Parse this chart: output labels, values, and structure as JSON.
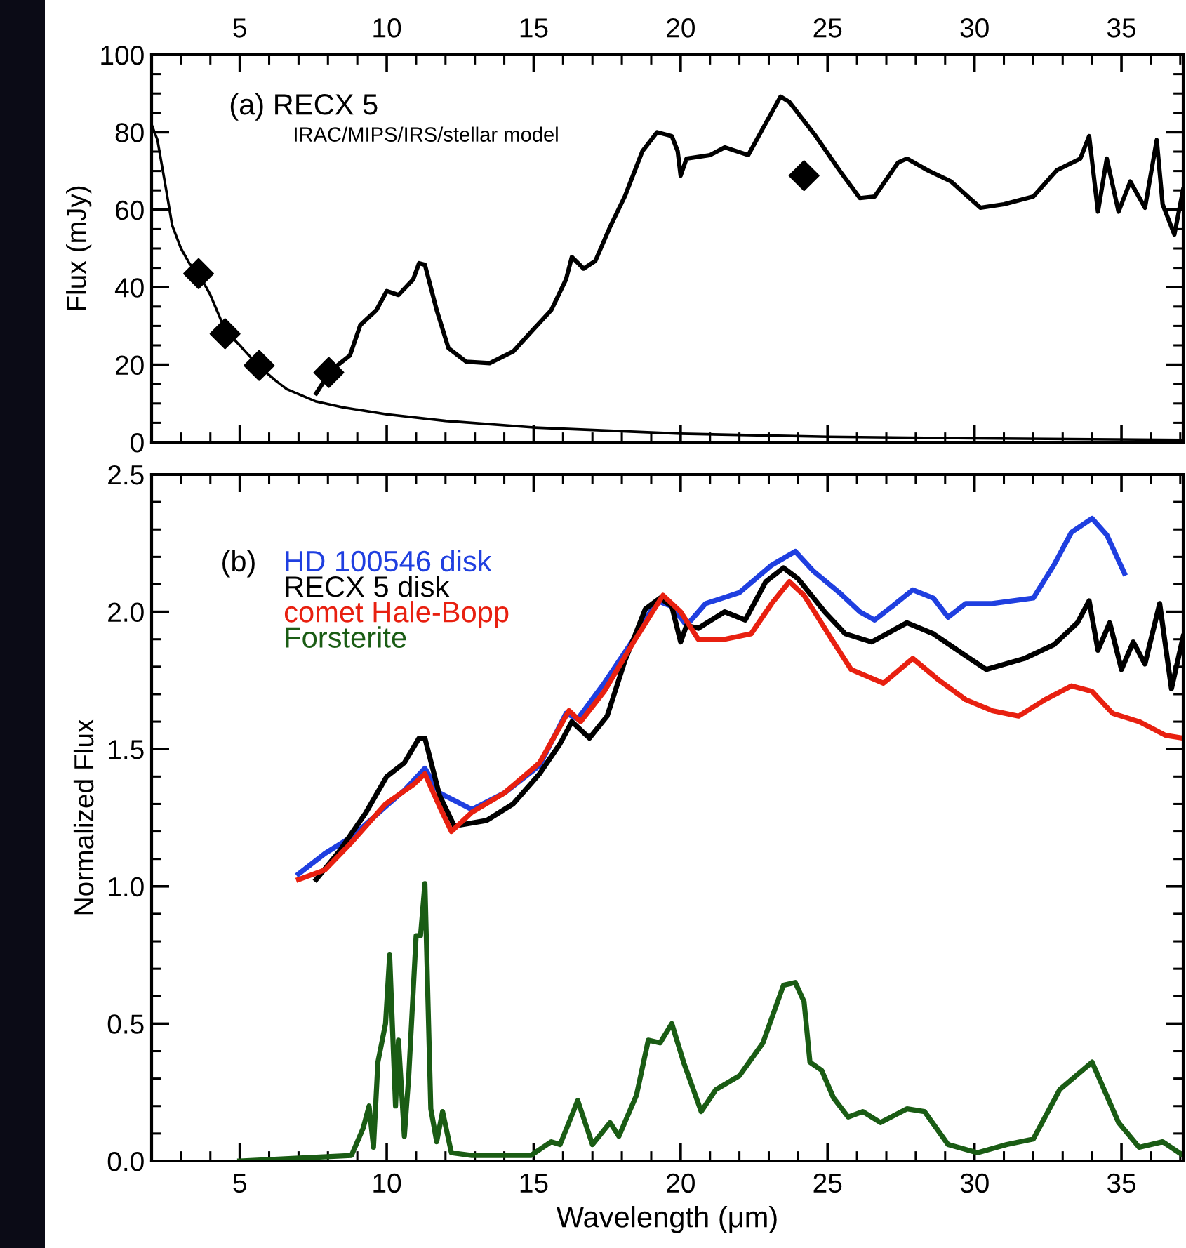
{
  "chart_data": [
    {
      "type": "line",
      "ylabel": "Flux (mJy)",
      "annotations": [
        "(a) RECX 5",
        "IRAC/MIPS/IRS/stellar model"
      ],
      "xlim": [
        2,
        37.1
      ],
      "xticks": [
        5,
        10,
        15,
        20,
        25,
        30,
        35
      ],
      "ylim": [
        0,
        100
      ],
      "yticks": [
        0,
        20,
        40,
        60,
        80,
        100
      ],
      "grid": false,
      "series": [
        {
          "color": "#000000",
          "marker": "none",
          "line_style": "solid",
          "x": [
            7.6,
            8.1,
            8.75,
            9.1,
            9.65,
            10.0,
            10.4,
            10.9,
            11.1,
            11.3,
            11.7,
            12.1,
            12.7,
            13.5,
            14.3,
            15.0,
            15.6,
            16.1,
            16.3,
            16.7,
            17.1,
            17.6,
            18.1,
            18.7,
            19.2,
            19.7,
            19.9,
            20.0,
            20.2,
            21.0,
            21.5,
            22.3,
            22.8,
            23.4,
            23.7,
            24.6,
            25.4,
            26.1,
            26.6,
            27.4,
            27.7,
            28.4,
            29.2,
            30.2,
            31.0,
            32.0,
            32.8,
            33.6,
            33.9,
            34.2,
            34.5,
            34.9,
            35.3,
            35.8,
            36.2,
            36.4,
            36.8,
            37.1
          ],
          "values": [
            12.6,
            18.5,
            22.4,
            30.2,
            34.1,
            39,
            38,
            42,
            46.2,
            45.8,
            34.1,
            24.3,
            20.8,
            20.4,
            23.4,
            29.2,
            34.1,
            42,
            47.8,
            44.8,
            46.8,
            55.6,
            63.4,
            75.1,
            80,
            79,
            75.1,
            68.8,
            73.2,
            74.1,
            76.1,
            74.1,
            81,
            89.2,
            87.8,
            79,
            70.2,
            63,
            63.4,
            72.2,
            73.2,
            70.2,
            67.3,
            60.5,
            61.4,
            63.4,
            70.2,
            73.2,
            79,
            59.5,
            73.2,
            59.5,
            67.3,
            60.5,
            78,
            61.4,
            53.6,
            65.3
          ]
        },
        {
          "color": "#000000",
          "marker": "none",
          "line_style": "solid",
          "x": [
            2.0,
            2.2,
            2.5,
            2.7,
            3.0,
            3.3,
            3.6,
            4.0,
            4.5,
            5.0,
            5.6,
            6.2,
            6.6,
            7.6,
            8.5,
            10,
            12,
            15,
            20,
            25,
            30,
            37.1
          ],
          "values": [
            82,
            78,
            65,
            56,
            50,
            46,
            43.5,
            38,
            29,
            25,
            20,
            16,
            13.7,
            10.5,
            9,
            7.2,
            5.5,
            3.8,
            2.2,
            1.4,
            1.0,
            0.6
          ]
        },
        {
          "type": "scatter",
          "color": "#000000",
          "marker": "diamond",
          "x": [
            3.6,
            4.5,
            5.66,
            8.03,
            24.2
          ],
          "values": [
            43.5,
            28,
            19.8,
            18,
            68.8
          ]
        }
      ]
    },
    {
      "type": "line",
      "xlabel": "Wavelength (μm)",
      "ylabel": "Normalized Flux",
      "annotations": [
        "(b)"
      ],
      "xlim": [
        2,
        37.1
      ],
      "xticks": [
        5,
        10,
        15,
        20,
        25,
        30,
        35
      ],
      "ylim": [
        0,
        2.5
      ],
      "yticks": [
        {
          "value": 0,
          "label": "0.0"
        },
        {
          "value": 0.5,
          "label": "0.5"
        },
        {
          "value": 1,
          "label": "1.0"
        },
        {
          "value": 1.5,
          "label": "1.5"
        },
        {
          "value": 2,
          "label": "2.0"
        },
        {
          "value": 2.5,
          "label": "2.5"
        }
      ],
      "grid": false,
      "legend": "top left",
      "series": [
        {
          "name": "HD 100546 disk",
          "color": "#1f3fe0",
          "x": [
            7.0,
            7.9,
            8.8,
            9.96,
            10.6,
            11.3,
            11.8,
            12.9,
            14.0,
            15.2,
            16.1,
            16.5,
            17.4,
            18.4,
            19.2,
            19.7,
            20.2,
            20.85,
            22.0,
            23.1,
            23.9,
            24.5,
            25.4,
            26.1,
            26.6,
            27.2,
            27.9,
            28.6,
            29.1,
            29.7,
            30.6,
            32.0,
            32.7,
            33.3,
            34.0,
            34.5,
            35.1
          ],
          "values": [
            1.045,
            1.12,
            1.18,
            1.29,
            1.35,
            1.43,
            1.34,
            1.28,
            1.34,
            1.44,
            1.63,
            1.61,
            1.74,
            1.9,
            2.04,
            2.02,
            1.95,
            2.03,
            2.07,
            2.17,
            2.22,
            2.15,
            2.07,
            2.0,
            1.97,
            2.02,
            2.08,
            2.05,
            1.98,
            2.03,
            2.03,
            2.05,
            2.17,
            2.29,
            2.34,
            2.28,
            2.14
          ]
        },
        {
          "name": "RECX 5 disk",
          "color": "#000000",
          "x": [
            7.6,
            8.4,
            9.3,
            10.0,
            10.6,
            11.1,
            11.3,
            11.8,
            12.3,
            13.4,
            14.3,
            15.2,
            15.9,
            16.3,
            16.9,
            17.5,
            18.1,
            18.8,
            19.3,
            19.7,
            20.0,
            20.2,
            20.6,
            21.5,
            22.2,
            22.9,
            23.5,
            24.0,
            24.9,
            25.6,
            26.5,
            27.7,
            28.6,
            29.7,
            30.4,
            31.7,
            32.7,
            33.5,
            33.9,
            34.2,
            34.6,
            35.0,
            35.4,
            35.8,
            36.3,
            36.7,
            37.1
          ],
          "values": [
            1.025,
            1.13,
            1.27,
            1.4,
            1.45,
            1.54,
            1.54,
            1.33,
            1.22,
            1.24,
            1.3,
            1.41,
            1.52,
            1.6,
            1.54,
            1.62,
            1.82,
            2.01,
            2.05,
            2.02,
            1.89,
            1.95,
            1.94,
            2.0,
            1.97,
            2.11,
            2.16,
            2.12,
            2.0,
            1.92,
            1.89,
            1.96,
            1.92,
            1.84,
            1.79,
            1.83,
            1.88,
            1.96,
            2.04,
            1.86,
            1.96,
            1.79,
            1.89,
            1.81,
            2.03,
            1.72,
            1.91
          ]
        },
        {
          "name": "comet Hale-Bopp",
          "color": "#e82010",
          "x": [
            7.0,
            7.9,
            8.8,
            9.96,
            10.9,
            11.3,
            11.8,
            12.2,
            12.9,
            14.0,
            15.2,
            16.2,
            16.6,
            17.4,
            18.4,
            19.4,
            20.0,
            20.6,
            21.5,
            22.4,
            23.1,
            23.7,
            24.2,
            25.2,
            25.8,
            26.9,
            27.9,
            28.8,
            29.7,
            30.6,
            31.5,
            32.4,
            33.3,
            34.0,
            34.7,
            35.6,
            36.5,
            37.1
          ],
          "values": [
            1.025,
            1.06,
            1.16,
            1.3,
            1.37,
            1.41,
            1.29,
            1.2,
            1.27,
            1.34,
            1.45,
            1.64,
            1.6,
            1.71,
            1.89,
            2.06,
            2.0,
            1.9,
            1.9,
            1.92,
            2.03,
            2.11,
            2.06,
            1.89,
            1.79,
            1.74,
            1.83,
            1.75,
            1.68,
            1.64,
            1.62,
            1.68,
            1.73,
            1.71,
            1.63,
            1.6,
            1.55,
            1.54
          ]
        },
        {
          "name": "Forsterite",
          "color": "#1a5c14",
          "x": [
            5,
            8.8,
            9.2,
            9.4,
            9.55,
            9.7,
            9.96,
            10.1,
            10.3,
            10.4,
            10.6,
            10.75,
            11.0,
            11.15,
            11.3,
            11.5,
            11.7,
            11.9,
            12.2,
            12.9,
            14.9,
            15.6,
            15.9,
            16.5,
            17.0,
            17.6,
            17.9,
            18.5,
            18.9,
            19.3,
            19.7,
            20.1,
            20.7,
            21.2,
            22.0,
            22.8,
            23.5,
            23.9,
            24.2,
            24.4,
            24.8,
            25.2,
            25.7,
            26.2,
            26.8,
            27.7,
            28.3,
            29.1,
            30.1,
            31.1,
            32.0,
            32.9,
            34.0,
            34.9,
            35.6,
            36.4,
            37.1
          ],
          "values": [
            0.0,
            0.02,
            0.12,
            0.2,
            0.05,
            0.36,
            0.5,
            0.75,
            0.2,
            0.44,
            0.09,
            0.31,
            0.82,
            0.82,
            1.01,
            0.19,
            0.07,
            0.18,
            0.03,
            0.02,
            0.02,
            0.07,
            0.06,
            0.22,
            0.06,
            0.14,
            0.09,
            0.24,
            0.44,
            0.43,
            0.5,
            0.36,
            0.18,
            0.26,
            0.31,
            0.43,
            0.64,
            0.65,
            0.58,
            0.36,
            0.33,
            0.23,
            0.16,
            0.18,
            0.14,
            0.19,
            0.18,
            0.06,
            0.03,
            0.06,
            0.08,
            0.26,
            0.36,
            0.14,
            0.05,
            0.07,
            0.02
          ]
        }
      ]
    }
  ]
}
